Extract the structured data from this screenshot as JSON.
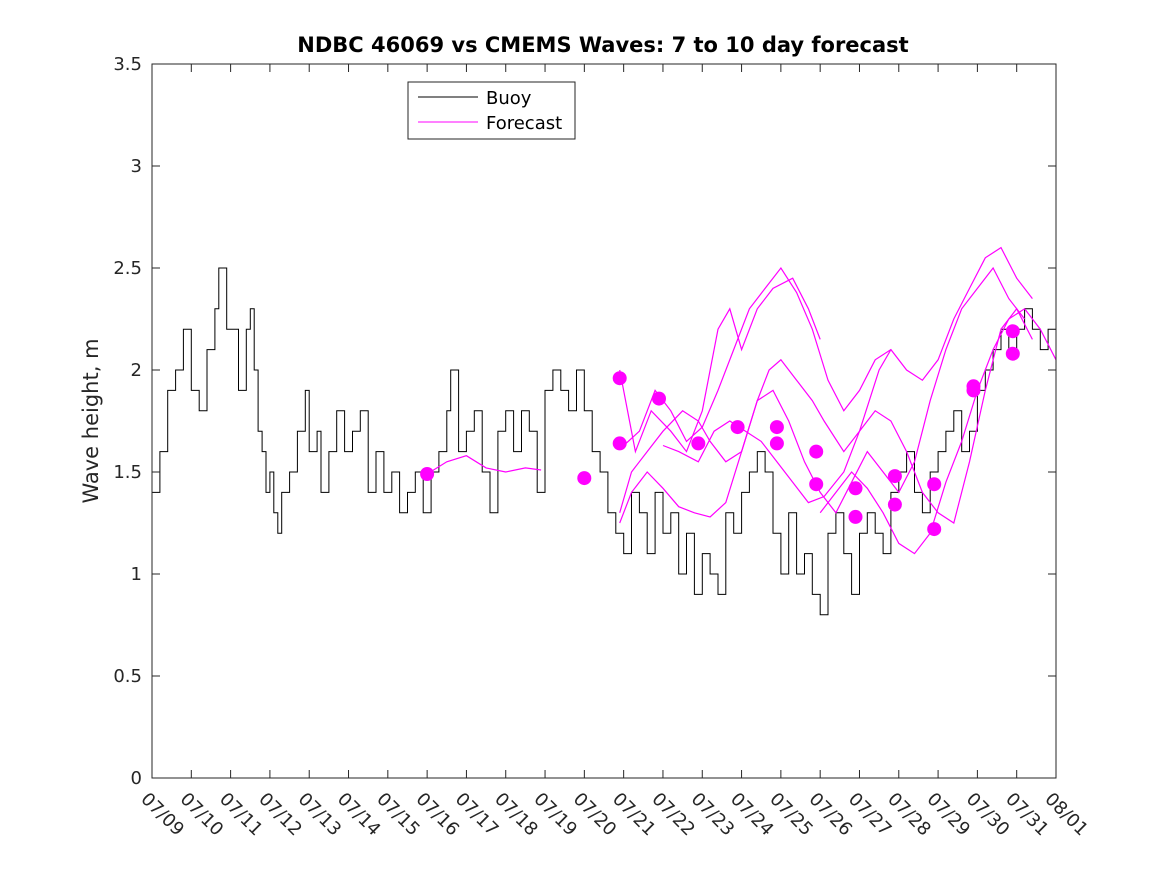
{
  "chart_data": {
    "type": "line",
    "title": "NDBC 46069 vs CMEMS Waves: 7 to 10 day forecast",
    "xlabel": "",
    "ylabel": "Wave height, m",
    "x_range": [
      "07/09",
      "08/01"
    ],
    "ylim": [
      0,
      3.5
    ],
    "y_ticks": [
      0,
      0.5,
      1,
      1.5,
      2,
      2.5,
      3,
      3.5
    ],
    "y_tick_labels": [
      "0",
      "0.5",
      "1",
      "1.5",
      "2",
      "2.5",
      "3",
      "3.5"
    ],
    "x_tick_labels": [
      "07/09",
      "07/10",
      "07/11",
      "07/12",
      "07/13",
      "07/14",
      "07/15",
      "07/16",
      "07/17",
      "07/18",
      "07/19",
      "07/20",
      "07/21",
      "07/22",
      "07/23",
      "07/24",
      "07/25",
      "07/26",
      "07/27",
      "07/28",
      "07/29",
      "07/30",
      "07/31",
      "08/01"
    ],
    "grid": false,
    "legend_position": "top-left",
    "legend": [
      {
        "label": "Buoy",
        "color": "#000000"
      },
      {
        "label": "Forecast",
        "color": "#ff00ff"
      }
    ],
    "buoy_series": {
      "name": "Buoy",
      "color": "#000000",
      "points": [
        [
          0,
          1.4
        ],
        [
          0.2,
          1.6
        ],
        [
          0.4,
          1.9
        ],
        [
          0.6,
          2.0
        ],
        [
          0.8,
          2.2
        ],
        [
          1.0,
          1.9
        ],
        [
          1.2,
          1.8
        ],
        [
          1.4,
          2.1
        ],
        [
          1.6,
          2.3
        ],
        [
          1.7,
          2.5
        ],
        [
          1.9,
          2.2
        ],
        [
          2.1,
          2.2
        ],
        [
          2.2,
          1.9
        ],
        [
          2.4,
          2.2
        ],
        [
          2.5,
          2.3
        ],
        [
          2.6,
          2.0
        ],
        [
          2.7,
          1.7
        ],
        [
          2.8,
          1.6
        ],
        [
          2.9,
          1.4
        ],
        [
          3.0,
          1.5
        ],
        [
          3.1,
          1.3
        ],
        [
          3.2,
          1.2
        ],
        [
          3.3,
          1.4
        ],
        [
          3.5,
          1.5
        ],
        [
          3.7,
          1.7
        ],
        [
          3.9,
          1.9
        ],
        [
          4.0,
          1.6
        ],
        [
          4.2,
          1.7
        ],
        [
          4.3,
          1.4
        ],
        [
          4.5,
          1.6
        ],
        [
          4.7,
          1.8
        ],
        [
          4.9,
          1.6
        ],
        [
          5.1,
          1.7
        ],
        [
          5.3,
          1.8
        ],
        [
          5.5,
          1.4
        ],
        [
          5.7,
          1.6
        ],
        [
          5.9,
          1.4
        ],
        [
          6.1,
          1.5
        ],
        [
          6.3,
          1.3
        ],
        [
          6.5,
          1.4
        ],
        [
          6.7,
          1.5
        ],
        [
          6.9,
          1.3
        ],
        [
          7.1,
          1.5
        ],
        [
          7.3,
          1.6
        ],
        [
          7.5,
          1.8
        ],
        [
          7.6,
          2.0
        ],
        [
          7.8,
          1.6
        ],
        [
          8.0,
          1.7
        ],
        [
          8.2,
          1.8
        ],
        [
          8.4,
          1.5
        ],
        [
          8.6,
          1.3
        ],
        [
          8.8,
          1.7
        ],
        [
          9.0,
          1.8
        ],
        [
          9.2,
          1.6
        ],
        [
          9.4,
          1.8
        ],
        [
          9.6,
          1.7
        ],
        [
          9.8,
          1.4
        ],
        [
          10.0,
          1.9
        ],
        [
          10.2,
          2.0
        ],
        [
          10.4,
          1.9
        ],
        [
          10.6,
          1.8
        ],
        [
          10.8,
          2.0
        ],
        [
          11.0,
          1.8
        ],
        [
          11.2,
          1.6
        ],
        [
          11.4,
          1.5
        ],
        [
          11.6,
          1.3
        ],
        [
          11.8,
          1.2
        ],
        [
          12.0,
          1.1
        ],
        [
          12.2,
          1.4
        ],
        [
          12.4,
          1.3
        ],
        [
          12.6,
          1.1
        ],
        [
          12.8,
          1.4
        ],
        [
          13.0,
          1.2
        ],
        [
          13.2,
          1.3
        ],
        [
          13.4,
          1.0
        ],
        [
          13.6,
          1.2
        ],
        [
          13.8,
          0.9
        ],
        [
          14.0,
          1.1
        ],
        [
          14.2,
          1.0
        ],
        [
          14.4,
          0.9
        ],
        [
          14.6,
          1.3
        ],
        [
          14.8,
          1.2
        ],
        [
          15.0,
          1.4
        ],
        [
          15.2,
          1.5
        ],
        [
          15.4,
          1.6
        ],
        [
          15.6,
          1.5
        ],
        [
          15.8,
          1.2
        ],
        [
          16.0,
          1.0
        ],
        [
          16.2,
          1.3
        ],
        [
          16.4,
          1.0
        ],
        [
          16.6,
          1.1
        ],
        [
          16.8,
          0.9
        ],
        [
          17.0,
          0.8
        ],
        [
          17.2,
          1.2
        ],
        [
          17.4,
          1.3
        ],
        [
          17.6,
          1.1
        ],
        [
          17.8,
          0.9
        ],
        [
          18.0,
          1.2
        ],
        [
          18.2,
          1.3
        ],
        [
          18.4,
          1.2
        ],
        [
          18.6,
          1.1
        ],
        [
          18.8,
          1.4
        ],
        [
          19.0,
          1.5
        ],
        [
          19.2,
          1.6
        ],
        [
          19.4,
          1.4
        ],
        [
          19.6,
          1.3
        ],
        [
          19.8,
          1.5
        ],
        [
          20.0,
          1.6
        ],
        [
          20.2,
          1.7
        ],
        [
          20.4,
          1.8
        ],
        [
          20.6,
          1.6
        ],
        [
          20.8,
          1.7
        ],
        [
          21.0,
          1.9
        ],
        [
          21.2,
          2.0
        ],
        [
          21.4,
          2.1
        ],
        [
          21.6,
          2.2
        ],
        [
          21.8,
          2.1
        ],
        [
          22.0,
          2.2
        ],
        [
          22.2,
          2.3
        ],
        [
          22.4,
          2.2
        ],
        [
          22.6,
          2.1
        ],
        [
          22.8,
          2.2
        ],
        [
          23.0,
          2.1
        ]
      ]
    },
    "forecast_series": [
      {
        "color": "#ff00ff",
        "points": [
          [
            7.0,
            1.49
          ],
          [
            7.5,
            1.55
          ],
          [
            8.0,
            1.58
          ],
          [
            8.5,
            1.52
          ],
          [
            9.0,
            1.5
          ],
          [
            9.5,
            1.52
          ],
          [
            9.9,
            1.51
          ]
        ]
      },
      {
        "color": "#ff00ff",
        "points": [
          [
            11.9,
            2.0
          ],
          [
            12.3,
            1.6
          ],
          [
            12.7,
            1.8
          ],
          [
            13.2,
            1.7
          ],
          [
            13.6,
            1.6
          ],
          [
            14.0,
            1.8
          ],
          [
            14.4,
            2.2
          ],
          [
            14.7,
            2.3
          ],
          [
            15.0,
            2.1
          ],
          [
            15.4,
            2.3
          ],
          [
            15.8,
            2.4
          ],
          [
            16.3,
            2.45
          ],
          [
            16.7,
            2.3
          ],
          [
            17.0,
            2.15
          ]
        ]
      },
      {
        "color": "#ff00ff",
        "points": [
          [
            11.9,
            1.3
          ],
          [
            12.2,
            1.5
          ],
          [
            12.6,
            1.6
          ],
          [
            13.0,
            1.7
          ],
          [
            13.5,
            1.8
          ],
          [
            13.9,
            1.75
          ],
          [
            14.2,
            1.65
          ],
          [
            14.6,
            1.55
          ],
          [
            15.0,
            1.6
          ],
          [
            15.4,
            1.85
          ],
          [
            15.7,
            2.0
          ],
          [
            16.0,
            2.05
          ],
          [
            16.4,
            1.95
          ],
          [
            16.8,
            1.85
          ],
          [
            17.1,
            1.75
          ],
          [
            17.6,
            1.6
          ],
          [
            18.0,
            1.7
          ],
          [
            18.5,
            2.0
          ],
          [
            18.8,
            2.1
          ]
        ]
      },
      {
        "color": "#ff00ff",
        "points": [
          [
            12.0,
            1.63
          ],
          [
            12.4,
            1.7
          ],
          [
            12.8,
            1.9
          ],
          [
            13.2,
            1.8
          ],
          [
            13.6,
            1.65
          ],
          [
            14.0,
            1.72
          ],
          [
            14.4,
            1.9
          ],
          [
            14.8,
            2.1
          ],
          [
            15.2,
            2.3
          ],
          [
            15.6,
            2.4
          ],
          [
            16.0,
            2.5
          ],
          [
            16.4,
            2.38
          ],
          [
            16.8,
            2.2
          ],
          [
            17.2,
            1.95
          ],
          [
            17.6,
            1.8
          ],
          [
            18.0,
            1.9
          ],
          [
            18.4,
            2.05
          ],
          [
            18.8,
            2.1
          ],
          [
            19.2,
            2.0
          ],
          [
            19.6,
            1.95
          ],
          [
            20.0,
            2.05
          ],
          [
            20.4,
            2.25
          ],
          [
            20.8,
            2.4
          ],
          [
            21.2,
            2.55
          ],
          [
            21.6,
            2.6
          ],
          [
            22.0,
            2.45
          ],
          [
            22.4,
            2.35
          ]
        ]
      },
      {
        "color": "#ff00ff",
        "points": [
          [
            11.9,
            1.25
          ],
          [
            12.2,
            1.4
          ],
          [
            12.6,
            1.5
          ],
          [
            13.0,
            1.42
          ],
          [
            13.4,
            1.33
          ],
          [
            13.8,
            1.3
          ],
          [
            14.2,
            1.28
          ],
          [
            14.6,
            1.35
          ],
          [
            15.0,
            1.6
          ],
          [
            15.4,
            1.85
          ],
          [
            15.8,
            1.9
          ],
          [
            16.2,
            1.75
          ],
          [
            16.6,
            1.55
          ],
          [
            17.0,
            1.4
          ],
          [
            17.4,
            1.3
          ],
          [
            17.8,
            1.45
          ],
          [
            18.2,
            1.6
          ],
          [
            18.6,
            1.5
          ],
          [
            19.0,
            1.4
          ],
          [
            19.4,
            1.55
          ],
          [
            19.8,
            1.85
          ],
          [
            20.2,
            2.1
          ],
          [
            20.6,
            2.3
          ],
          [
            21.0,
            2.4
          ],
          [
            21.4,
            2.5
          ],
          [
            21.8,
            2.35
          ],
          [
            22.2,
            2.25
          ]
        ]
      },
      {
        "color": "#ff00ff",
        "points": [
          [
            13.0,
            1.63
          ],
          [
            13.4,
            1.6
          ],
          [
            13.9,
            1.55
          ],
          [
            14.3,
            1.7
          ],
          [
            14.7,
            1.75
          ],
          [
            15.1,
            1.7
          ],
          [
            15.5,
            1.65
          ],
          [
            15.9,
            1.55
          ],
          [
            16.3,
            1.45
          ],
          [
            16.7,
            1.35
          ],
          [
            17.1,
            1.38
          ],
          [
            17.6,
            1.5
          ],
          [
            18.0,
            1.7
          ],
          [
            18.4,
            1.8
          ],
          [
            18.8,
            1.75
          ],
          [
            19.2,
            1.6
          ],
          [
            19.6,
            1.4
          ],
          [
            20.0,
            1.3
          ],
          [
            20.4,
            1.25
          ],
          [
            20.8,
            1.55
          ],
          [
            21.2,
            1.9
          ],
          [
            21.6,
            2.2
          ],
          [
            22.0,
            2.3
          ],
          [
            22.4,
            2.15
          ]
        ]
      },
      {
        "color": "#ff00ff",
        "points": [
          [
            17.0,
            1.3
          ],
          [
            17.4,
            1.4
          ],
          [
            17.8,
            1.5
          ],
          [
            18.2,
            1.42
          ],
          [
            18.6,
            1.3
          ],
          [
            19.0,
            1.15
          ],
          [
            19.4,
            1.1
          ],
          [
            19.8,
            1.2
          ],
          [
            20.2,
            1.45
          ],
          [
            20.6,
            1.65
          ],
          [
            21.0,
            1.9
          ],
          [
            21.4,
            2.1
          ],
          [
            21.8,
            2.25
          ],
          [
            22.2,
            2.3
          ],
          [
            22.6,
            2.2
          ],
          [
            23.0,
            2.05
          ]
        ]
      }
    ],
    "forecast_markers": [
      [
        7.0,
        1.49
      ],
      [
        11.0,
        1.47
      ],
      [
        11.9,
        1.96
      ],
      [
        11.9,
        1.64
      ],
      [
        12.9,
        1.86
      ],
      [
        13.9,
        1.64
      ],
      [
        14.9,
        1.72
      ],
      [
        15.9,
        1.72
      ],
      [
        15.9,
        1.64
      ],
      [
        16.9,
        1.6
      ],
      [
        16.9,
        1.44
      ],
      [
        17.9,
        1.42
      ],
      [
        17.9,
        1.28
      ],
      [
        18.9,
        1.48
      ],
      [
        18.9,
        1.34
      ],
      [
        19.9,
        1.44
      ],
      [
        19.9,
        1.22
      ],
      [
        20.9,
        1.92
      ],
      [
        20.9,
        1.9
      ],
      [
        21.9,
        2.19
      ],
      [
        21.9,
        2.08
      ]
    ],
    "marker_color": "#ff00ff"
  }
}
